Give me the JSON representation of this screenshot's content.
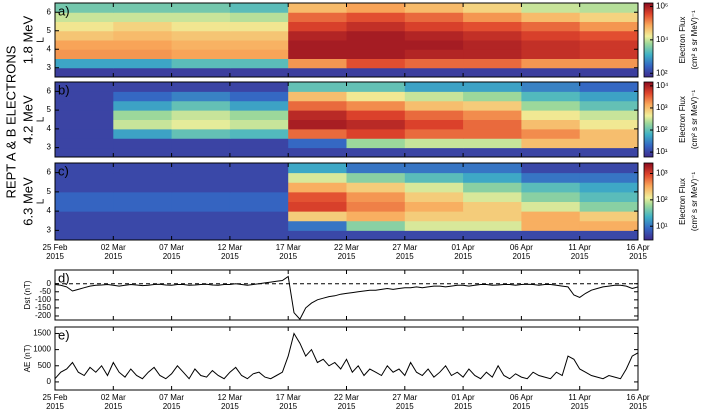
{
  "title": "REPT A & B ELECTRONS",
  "chart_data": [
    {
      "type": "heatmap",
      "label": "a)",
      "energy": "1.8 MeV",
      "ylabel": "L",
      "zlabel": "Electron Flux",
      "zunit": "(cm² s sr MeV)⁻¹",
      "log_color": true,
      "xlim": [
        0,
        50
      ],
      "xticks": [
        0,
        5,
        10,
        15,
        20,
        25,
        30,
        35,
        40,
        45,
        50
      ],
      "ylim": [
        2.5,
        6.5
      ],
      "yticks": [
        3,
        4,
        5,
        6
      ],
      "zlim": [
        60,
        1600000
      ],
      "zticks": [
        {
          "value": 100,
          "label": "10²"
        },
        {
          "value": 10000,
          "label": "10⁴"
        },
        {
          "value": 1000000,
          "label": "10⁶"
        }
      ],
      "xbins": [
        0,
        5,
        10,
        15,
        20,
        25,
        30,
        35,
        40,
        45,
        50
      ],
      "ybins": [
        2.5,
        3,
        3.5,
        4,
        4.5,
        5,
        5.5,
        6,
        6.5
      ],
      "z": [
        [
          100,
          100,
          100,
          100,
          100,
          100,
          100,
          100,
          100,
          100
        ],
        [
          1000,
          1000,
          2000,
          2000,
          100000,
          300000,
          200000,
          200000,
          100000,
          100000
        ],
        [
          100000,
          100000,
          80000,
          80000,
          1000000,
          1000000,
          800000,
          800000,
          600000,
          500000
        ],
        [
          80000,
          80000,
          60000,
          60000,
          1000000,
          1000000,
          1000000,
          800000,
          600000,
          500000
        ],
        [
          40000,
          50000,
          40000,
          40000,
          800000,
          1000000,
          800000,
          600000,
          400000,
          300000
        ],
        [
          20000,
          30000,
          20000,
          20000,
          400000,
          600000,
          400000,
          300000,
          200000,
          100000
        ],
        [
          10000,
          10000,
          10000,
          8000,
          200000,
          300000,
          200000,
          100000,
          50000,
          30000
        ],
        [
          3000,
          3000,
          3000,
          2000,
          50000,
          80000,
          50000,
          30000,
          10000,
          8000
        ]
      ]
    },
    {
      "type": "heatmap",
      "label": "b)",
      "energy": "4.2 MeV",
      "ylabel": "L",
      "zlabel": "Electron Flux",
      "zunit": "(cm² s sr MeV)⁻¹",
      "log_color": true,
      "xlim": [
        0,
        50
      ],
      "xticks": [
        0,
        5,
        10,
        15,
        20,
        25,
        30,
        35,
        40,
        45,
        50
      ],
      "ylim": [
        2.5,
        6.5
      ],
      "yticks": [
        3,
        4,
        5,
        6
      ],
      "zlim": [
        6,
        15000
      ],
      "zticks": [
        {
          "value": 10,
          "label": "10¹"
        },
        {
          "value": 100,
          "label": "10²"
        },
        {
          "value": 1000,
          "label": "10³"
        },
        {
          "value": 10000,
          "label": "10⁴"
        }
      ],
      "xbins": [
        0,
        5,
        10,
        15,
        20,
        25,
        30,
        35,
        40,
        45,
        50
      ],
      "ybins": [
        2.5,
        3,
        3.5,
        4,
        4.5,
        5,
        5.5,
        6,
        6.5
      ],
      "z": [
        [
          10,
          10,
          10,
          10,
          10,
          10,
          10,
          10,
          10,
          10
        ],
        [
          10,
          10,
          10,
          10,
          20,
          200,
          300,
          300,
          1000,
          1000
        ],
        [
          10,
          50,
          100,
          80,
          3000,
          5000,
          3000,
          3000,
          2000,
          1000
        ],
        [
          10,
          300,
          400,
          300,
          10000,
          8000,
          5000,
          3000,
          1000,
          500
        ],
        [
          10,
          200,
          300,
          200,
          8000,
          5000,
          3000,
          2000,
          500,
          300
        ],
        [
          10,
          50,
          100,
          50,
          3000,
          2000,
          1000,
          800,
          200,
          100
        ],
        [
          10,
          20,
          30,
          20,
          1000,
          500,
          300,
          200,
          80,
          50
        ],
        [
          10,
          10,
          10,
          10,
          100,
          100,
          50,
          50,
          30,
          20
        ]
      ]
    },
    {
      "type": "heatmap",
      "label": "c)",
      "energy": "6.3 MeV",
      "ylabel": "L",
      "zlabel": "Electron Flux",
      "zunit": "(cm² s sr MeV)⁻¹",
      "log_color": true,
      "xlim": [
        0,
        50
      ],
      "xticks": [
        {
          "value": 0,
          "label": "25 Feb",
          "year": "2015"
        },
        {
          "value": 5,
          "label": "02 Mar",
          "year": "2015"
        },
        {
          "value": 10,
          "label": "07 Mar",
          "year": "2015"
        },
        {
          "value": 15,
          "label": "12 Mar",
          "year": "2015"
        },
        {
          "value": 20,
          "label": "17 Mar",
          "year": "2015"
        },
        {
          "value": 25,
          "label": "22 Mar",
          "year": "2015"
        },
        {
          "value": 30,
          "label": "27 Mar",
          "year": "2015"
        },
        {
          "value": 35,
          "label": "01 Apr",
          "year": "2015"
        },
        {
          "value": 40,
          "label": "06 Apr",
          "year": "2015"
        },
        {
          "value": 45,
          "label": "11 Apr",
          "year": "2015"
        },
        {
          "value": 50,
          "label": "16 Apr",
          "year": "2015"
        }
      ],
      "ylim": [
        2.5,
        6.5
      ],
      "yticks": [
        3,
        4,
        5,
        6
      ],
      "zlim": [
        3,
        2500
      ],
      "zticks": [
        {
          "value": 10,
          "label": "10¹"
        },
        {
          "value": 100,
          "label": "10²"
        },
        {
          "value": 1000,
          "label": "10³"
        }
      ],
      "xbins": [
        0,
        5,
        10,
        15,
        20,
        25,
        30,
        35,
        40,
        45,
        50
      ],
      "ybins": [
        2.5,
        3,
        3.5,
        4,
        4.5,
        5,
        5.5,
        6,
        6.5
      ],
      "z": [
        [
          5,
          5,
          5,
          5,
          5,
          5,
          5,
          5,
          5,
          5
        ],
        [
          5,
          5,
          5,
          5,
          10,
          50,
          100,
          100,
          300,
          300
        ],
        [
          5,
          5,
          5,
          5,
          200,
          300,
          200,
          200,
          300,
          200
        ],
        [
          8,
          8,
          8,
          8,
          1000,
          500,
          300,
          200,
          100,
          50
        ],
        [
          8,
          8,
          8,
          8,
          800,
          400,
          200,
          100,
          50,
          30
        ],
        [
          5,
          5,
          5,
          5,
          300,
          200,
          100,
          50,
          30,
          20
        ],
        [
          5,
          5,
          5,
          5,
          100,
          50,
          30,
          20,
          10,
          10
        ],
        [
          5,
          5,
          5,
          5,
          20,
          10,
          10,
          10,
          5,
          5
        ]
      ]
    },
    {
      "type": "line",
      "label": "d)",
      "ylabel": "Dst (nT)",
      "color": "#000000",
      "zero_line": true,
      "xlim": [
        0,
        50
      ],
      "xticks": [
        0,
        5,
        10,
        15,
        20,
        25,
        30,
        35,
        40,
        45,
        50
      ],
      "ylim": [
        -225,
        85
      ],
      "yticks": [
        0,
        -50,
        -100,
        -150,
        -200
      ],
      "x": [
        0,
        0.5,
        1,
        1.5,
        2,
        2.5,
        3,
        3.5,
        4,
        4.5,
        5,
        5.5,
        6,
        6.5,
        7,
        7.5,
        8,
        8.5,
        9,
        9.5,
        10,
        10.5,
        11,
        11.5,
        12,
        12.5,
        13,
        13.5,
        14,
        14.5,
        15,
        15.5,
        16,
        16.5,
        17,
        17.5,
        18,
        18.5,
        19,
        19.5,
        20,
        20.5,
        21,
        21.5,
        22,
        22.5,
        23,
        23.5,
        24,
        24.5,
        25,
        25.5,
        26,
        26.5,
        27,
        27.5,
        28,
        28.5,
        29,
        29.5,
        30,
        30.5,
        31,
        31.5,
        32,
        32.5,
        33,
        33.5,
        34,
        34.5,
        35,
        35.5,
        36,
        36.5,
        37,
        37.5,
        38,
        38.5,
        39,
        39.5,
        40,
        40.5,
        41,
        41.5,
        42,
        42.5,
        43,
        43.5,
        44,
        44.5,
        45,
        45.5,
        46,
        46.5,
        47,
        47.5,
        48,
        48.5,
        49,
        49.5,
        50
      ],
      "values": [
        -5,
        -10,
        -20,
        -45,
        -35,
        -25,
        -15,
        -10,
        -8,
        -5,
        -10,
        -15,
        -10,
        -5,
        -8,
        -12,
        -10,
        -5,
        -3,
        -8,
        -10,
        -5,
        -5,
        -10,
        -8,
        -5,
        -3,
        -8,
        -10,
        -5,
        -5,
        0,
        -5,
        -10,
        -5,
        0,
        5,
        10,
        15,
        20,
        45,
        -180,
        -220,
        -150,
        -120,
        -100,
        -90,
        -80,
        -75,
        -65,
        -60,
        -55,
        -50,
        -45,
        -40,
        -40,
        -35,
        -30,
        -35,
        -30,
        -25,
        -25,
        -20,
        -25,
        -20,
        -15,
        -15,
        -20,
        -15,
        -10,
        -10,
        -15,
        -10,
        -5,
        -5,
        -10,
        -8,
        -5,
        -5,
        -10,
        -5,
        -3,
        -5,
        -10,
        -5,
        -5,
        -10,
        -15,
        -20,
        -70,
        -85,
        -60,
        -40,
        -30,
        -20,
        -15,
        -10,
        -10,
        -15,
        -30,
        -20
      ]
    },
    {
      "type": "line",
      "label": "e)",
      "ylabel": "AE (nT)",
      "color": "#000000",
      "xlim": [
        0,
        50
      ],
      "xticks": [
        {
          "value": 0,
          "label": "25 Feb",
          "year": "2015"
        },
        {
          "value": 5,
          "label": "02 Mar",
          "year": "2015"
        },
        {
          "value": 10,
          "label": "07 Mar",
          "year": "2015"
        },
        {
          "value": 15,
          "label": "12 Mar",
          "year": "2015"
        },
        {
          "value": 20,
          "label": "17 Mar",
          "year": "2015"
        },
        {
          "value": 25,
          "label": "22 Mar",
          "year": "2015"
        },
        {
          "value": 30,
          "label": "27 Mar",
          "year": "2015"
        },
        {
          "value": 35,
          "label": "01 Apr",
          "year": "2015"
        },
        {
          "value": 40,
          "label": "06 Apr",
          "year": "2015"
        },
        {
          "value": 45,
          "label": "11 Apr",
          "year": "2015"
        },
        {
          "value": 50,
          "label": "16 Apr",
          "year": "2015"
        }
      ],
      "ylim": [
        -250,
        1700
      ],
      "yticks": [
        0,
        500,
        1000,
        1500
      ],
      "x": [
        0,
        0.5,
        1,
        1.5,
        2,
        2.5,
        3,
        3.5,
        4,
        4.5,
        5,
        5.5,
        6,
        6.5,
        7,
        7.5,
        8,
        8.5,
        9,
        9.5,
        10,
        10.5,
        11,
        11.5,
        12,
        12.5,
        13,
        13.5,
        14,
        14.5,
        15,
        15.5,
        16,
        16.5,
        17,
        17.5,
        18,
        18.5,
        19,
        19.5,
        20,
        20.5,
        21,
        21.5,
        22,
        22.5,
        23,
        23.5,
        24,
        24.5,
        25,
        25.5,
        26,
        26.5,
        27,
        27.5,
        28,
        28.5,
        29,
        29.5,
        30,
        30.5,
        31,
        31.5,
        32,
        32.5,
        33,
        33.5,
        34,
        34.5,
        35,
        35.5,
        36,
        36.5,
        37,
        37.5,
        38,
        38.5,
        39,
        39.5,
        40,
        40.5,
        41,
        41.5,
        42,
        42.5,
        43,
        43.5,
        44,
        44.5,
        45,
        45.5,
        46,
        46.5,
        47,
        47.5,
        48,
        48.5,
        49,
        49.5,
        50
      ],
      "values": [
        100,
        300,
        400,
        600,
        300,
        200,
        450,
        300,
        500,
        200,
        600,
        300,
        150,
        400,
        200,
        100,
        300,
        450,
        200,
        100,
        250,
        500,
        300,
        100,
        400,
        200,
        150,
        350,
        200,
        100,
        300,
        450,
        200,
        100,
        250,
        300,
        150,
        100,
        200,
        300,
        800,
        1500,
        1200,
        800,
        1000,
        600,
        700,
        500,
        600,
        400,
        700,
        300,
        500,
        200,
        400,
        300,
        200,
        500,
        300,
        400,
        200,
        600,
        300,
        200,
        400,
        150,
        300,
        500,
        200,
        300,
        150,
        400,
        200,
        100,
        300,
        150,
        500,
        200,
        100,
        250,
        150,
        100,
        300,
        200,
        150,
        100,
        300,
        200,
        800,
        700,
        400,
        300,
        200,
        150,
        100,
        200,
        150,
        100,
        400,
        800,
        900
      ]
    }
  ]
}
